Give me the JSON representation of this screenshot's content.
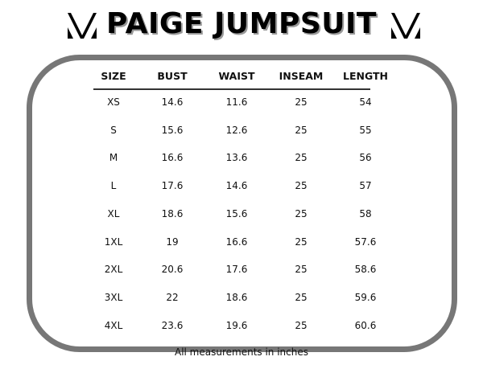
{
  "title": "PAIGE JUMPSUIT",
  "logo_icon": "stylized-v-logo",
  "table": {
    "headers": [
      "SIZE",
      "BUST",
      "WAIST",
      "INSEAM",
      "LENGTH"
    ],
    "rows": [
      [
        "XS",
        "14.6",
        "11.6",
        "25",
        "54"
      ],
      [
        "S",
        "15.6",
        "12.6",
        "25",
        "55"
      ],
      [
        "M",
        "16.6",
        "13.6",
        "25",
        "56"
      ],
      [
        "L",
        "17.6",
        "14.6",
        "25",
        "57"
      ],
      [
        "XL",
        "18.6",
        "15.6",
        "25",
        "58"
      ],
      [
        "1XL",
        "19",
        "16.6",
        "25",
        "57.6"
      ],
      [
        "2XL",
        "20.6",
        "17.6",
        "25",
        "58.6"
      ],
      [
        "3XL",
        "22",
        "18.6",
        "25",
        "59.6"
      ],
      [
        "4XL",
        "23.6",
        "19.6",
        "25",
        "60.6"
      ]
    ]
  },
  "footnote": "All measurements in inches",
  "colors": {
    "border": "#777777",
    "text": "#111111"
  }
}
